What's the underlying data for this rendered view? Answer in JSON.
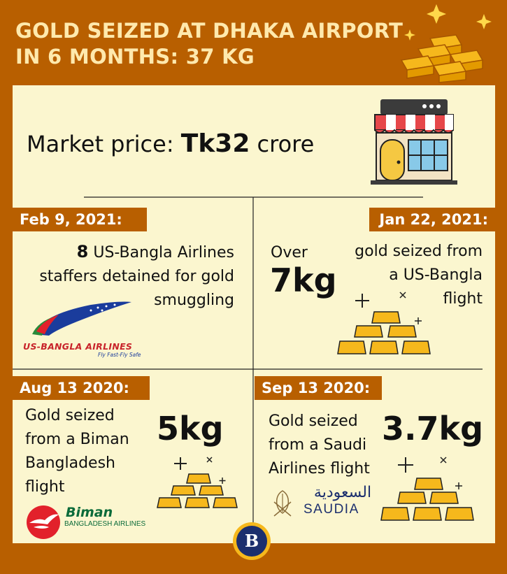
{
  "title": {
    "line1": "GOLD SEIZED AT DHAKA AIRPORT",
    "line2": "IN 6 MONTHS:  37 KG"
  },
  "market": {
    "label": "Market price: ",
    "value": "Tk32",
    "unit": " crore"
  },
  "cells": {
    "feb": {
      "date": "Feb 9, 2021:",
      "count": "8",
      "text_a": " US-Bangla Airlines",
      "text_b": "staffers detained for gold",
      "text_c": "smuggling",
      "logo_name": "US-BANGLA AIRLINES",
      "logo_tagline": "Fly Fast-Fly Safe"
    },
    "jan": {
      "date": "Jan 22, 2021:",
      "over": "Over",
      "amount": "7kg",
      "text_a": "gold seized from",
      "text_b": "a US-Bangla",
      "text_c": "flight"
    },
    "aug": {
      "date": "Aug 13 2020:",
      "text_a": "Gold seized",
      "text_b": "from a Biman",
      "text_c": "Bangladesh",
      "text_d": "flight",
      "amount": "5kg",
      "logo_name": "Biman",
      "logo_sub": "BANGLADESH AIRLINES"
    },
    "sep": {
      "date": "Sep 13 2020:",
      "text_a": "Gold seized",
      "text_b": "from a Saudi",
      "text_c": "Airlines flight",
      "amount": "3.7kg",
      "logo_arabic": "السعودية",
      "logo_name": "SAUDIA"
    }
  },
  "badge": "B",
  "colors": {
    "background": "#b85f00",
    "panel": "#fbf6cf",
    "title": "#ffe9ad",
    "gold": "#f6b81c",
    "gold_dark": "#e39a00"
  }
}
